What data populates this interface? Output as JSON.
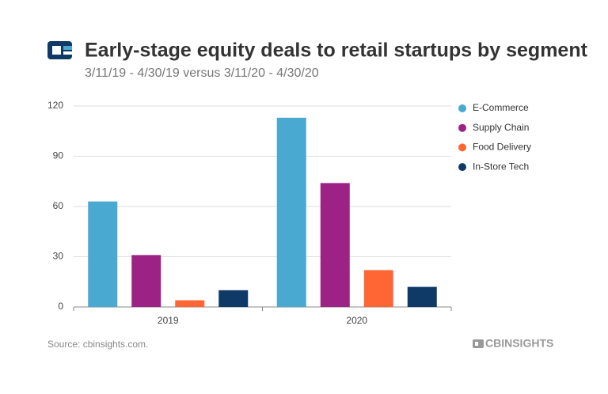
{
  "chart_data": {
    "type": "bar",
    "title": "Early-stage equity deals to retail startups by segment",
    "subtitle": "3/11/19 - 4/30/19 versus 3/11/20 - 4/30/20",
    "categories": [
      "2019",
      "2020"
    ],
    "series": [
      {
        "name": "E-Commerce",
        "color": "#4aa9d1",
        "values": [
          63,
          113
        ]
      },
      {
        "name": "Supply Chain",
        "color": "#9c2385",
        "values": [
          31,
          74
        ]
      },
      {
        "name": "Food Delivery",
        "color": "#ff6633",
        "values": [
          4,
          22
        ]
      },
      {
        "name": "In-Store Tech",
        "color": "#0f3a68",
        "values": [
          10,
          12
        ]
      }
    ],
    "ylim": [
      0,
      120
    ],
    "yticks": [
      0,
      30,
      60,
      90,
      120
    ],
    "grid": true,
    "legend": "right",
    "source": "Source: cbinsights.com.",
    "brand": "CBINSIGHTS"
  }
}
